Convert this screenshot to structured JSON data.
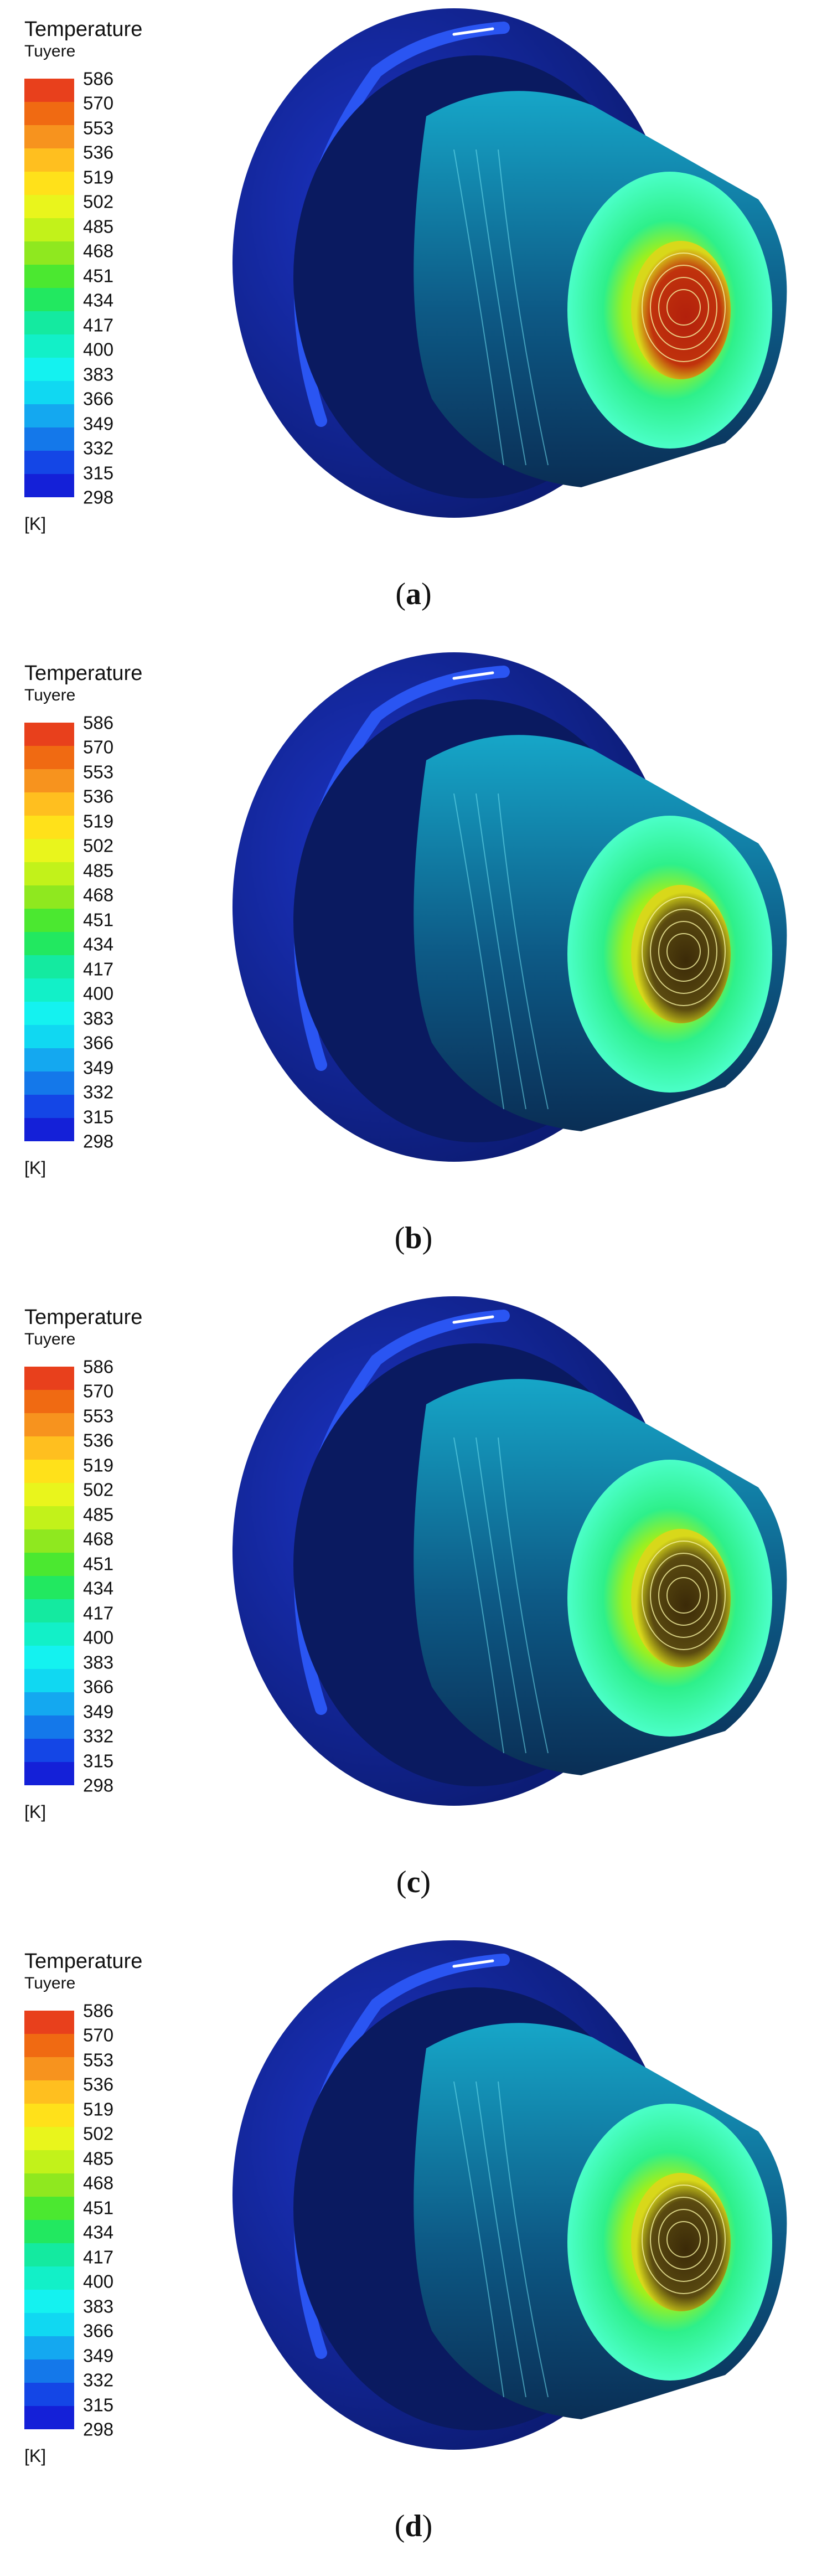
{
  "legend": {
    "title": "Temperature",
    "subtitle": "Tuyere",
    "unit": "[K]",
    "ticks": [
      "586",
      "570",
      "553",
      "536",
      "519",
      "502",
      "485",
      "468",
      "451",
      "434",
      "417",
      "400",
      "383",
      "366",
      "349",
      "332",
      "315",
      "298"
    ],
    "colors": [
      "#e8401c",
      "#f06a12",
      "#f7931e",
      "#ffbf1f",
      "#ffe11a",
      "#e9f51c",
      "#c2f21a",
      "#8fe81f",
      "#4be830",
      "#22e860",
      "#14eaa0",
      "#12f0c8",
      "#14f2f0",
      "#10d8f2",
      "#14a8f0",
      "#1478ea",
      "#1446e6",
      "#1420d8"
    ]
  },
  "panels": [
    {
      "caption_open": "(",
      "caption_letter": "a",
      "caption_close": ")",
      "variant": "a"
    },
    {
      "caption_open": "(",
      "caption_letter": "b",
      "caption_close": ")",
      "variant": "b"
    },
    {
      "caption_open": "(",
      "caption_letter": "c",
      "caption_close": ")",
      "variant": "c"
    },
    {
      "caption_open": "(",
      "caption_letter": "d",
      "caption_close": ")",
      "variant": "d"
    }
  ],
  "colors": {
    "outer_dark": "#0b1a6e",
    "outer_mid": "#1c34c8",
    "rim_ring": "#2a55f2",
    "cone": "#16a6c8",
    "cone_shade": "#0a2e55",
    "face_green": "#2ef08a",
    "face_light": "#4bffc8",
    "hot_dark": "#3b2a08",
    "hot_red": "#b3200c",
    "hot_yellow": "#e6f01a"
  }
}
